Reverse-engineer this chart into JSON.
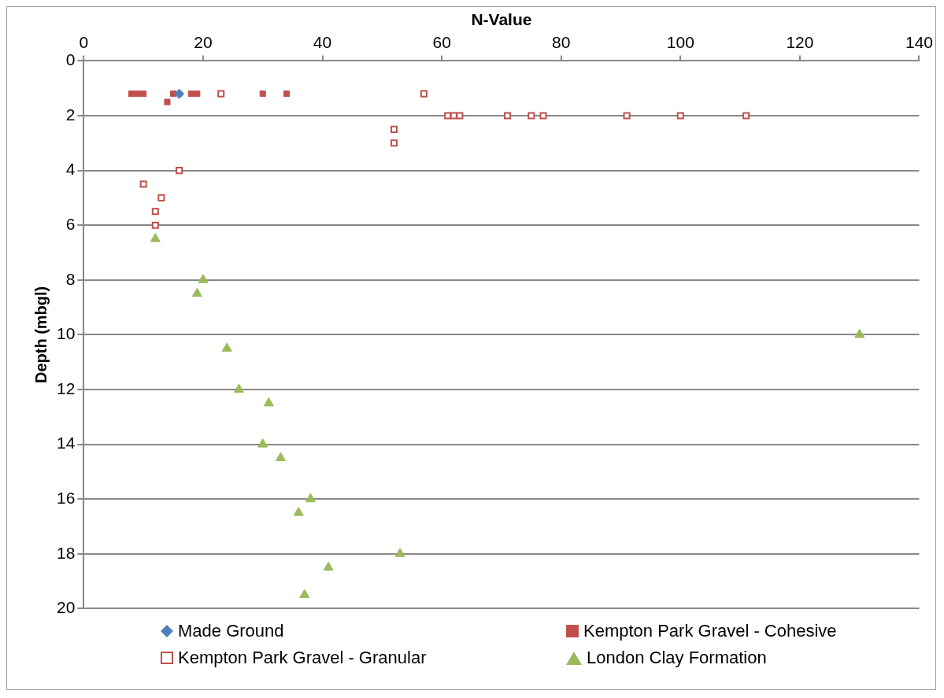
{
  "chart_data": {
    "type": "scatter",
    "xlabel": "N-Value",
    "ylabel": "Depth (mbgl)",
    "xlim": [
      0,
      140
    ],
    "xticks": [
      0,
      20,
      40,
      60,
      80,
      100,
      120,
      140
    ],
    "ylim": [
      20,
      0
    ],
    "yticks": [
      0,
      2,
      4,
      6,
      8,
      10,
      12,
      14,
      16,
      18,
      20
    ],
    "grid": "y",
    "legend": "bottom",
    "series": [
      {
        "name": "Made Ground",
        "color": "#4f81bd",
        "marker": "diamond",
        "x": [
          16
        ],
        "values": [
          1.2
        ]
      },
      {
        "name": "Kempton Park Gravel - Cohesive",
        "color": "#c0504d",
        "marker": "square",
        "x": [
          8,
          9,
          10,
          15,
          18,
          19,
          30,
          34,
          14
        ],
        "values": [
          1.2,
          1.2,
          1.2,
          1.2,
          1.2,
          1.2,
          1.2,
          1.2,
          1.5
        ]
      },
      {
        "name": "Kempton Park Gravel - Granular",
        "color": "#c0504d",
        "marker": "square",
        "x": [
          23,
          57,
          61,
          62,
          63,
          71,
          75,
          77,
          91,
          100,
          111,
          52,
          52,
          16,
          10,
          13,
          12,
          12
        ],
        "values": [
          1.2,
          1.2,
          2,
          2,
          2,
          2,
          2,
          2,
          2,
          2,
          2,
          2.5,
          3,
          4,
          4.5,
          5,
          5.5,
          6
        ]
      },
      {
        "name": "London Clay Formation",
        "color": "#9bbb59",
        "marker": "triangle",
        "x": [
          12,
          20,
          19,
          24,
          26,
          31,
          30,
          33,
          38,
          36,
          53,
          41,
          37,
          130
        ],
        "values": [
          6.5,
          8,
          8.5,
          10.5,
          12,
          12.5,
          14,
          14.5,
          16,
          16.5,
          18,
          18.5,
          19.5,
          10
        ]
      }
    ]
  }
}
